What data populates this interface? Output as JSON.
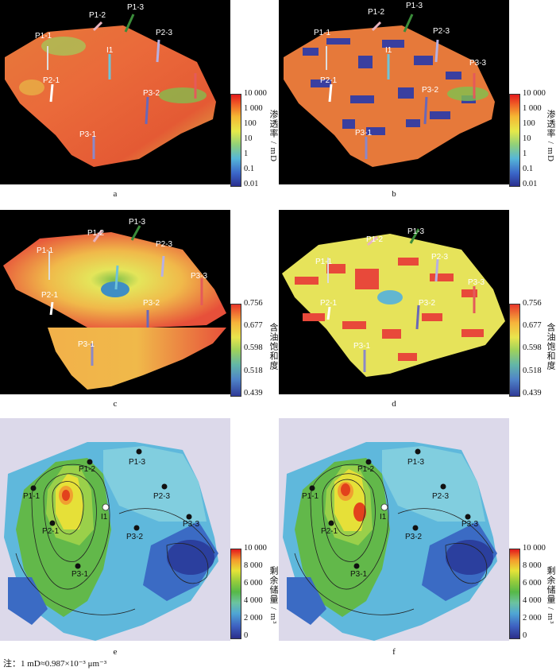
{
  "panels": {
    "a": {
      "label": "a",
      "wells": [
        "P1-1",
        "P1-2",
        "P1-3",
        "P2-3",
        "I1",
        "P2-1",
        "P3-2",
        "P3-1"
      ]
    },
    "b": {
      "label": "b",
      "wells": [
        "P1-1",
        "P1-2",
        "P1-3",
        "P2-3",
        "I1",
        "P2-1",
        "P3-3",
        "P3-2",
        "P3-1"
      ]
    },
    "c": {
      "label": "c",
      "wells": [
        "P1-1",
        "P1-2",
        "P1-3",
        "P2-3",
        "P3-3",
        "P2-1",
        "P3-2",
        "P3-1"
      ]
    },
    "d": {
      "label": "d",
      "wells": [
        "P1-1",
        "P1-2",
        "P1-3",
        "P2-3",
        "P3-3",
        "P2-1",
        "P3-2",
        "P3-1"
      ]
    },
    "e": {
      "label": "e",
      "wells": [
        "P1-2",
        "P1-3",
        "P1-1",
        "P2-3",
        "I1",
        "P2-1",
        "P3-2",
        "P3-3",
        "P3-1"
      ]
    },
    "f": {
      "label": "f",
      "wells": [
        "P1-2",
        "P1-3",
        "P1-1",
        "P2-3",
        "I1",
        "P2-1",
        "P3-2",
        "P3-3",
        "P3-1"
      ]
    }
  },
  "colorbars": {
    "permeability": {
      "title": "渗透率 / mD",
      "ticks": [
        "10 000",
        "1 000",
        "100",
        "10",
        "1",
        "0.1",
        "0.01"
      ]
    },
    "saturation": {
      "title": "含油饱和度",
      "ticks": [
        "0.756",
        "0.677",
        "0.598",
        "0.518",
        "0.439"
      ]
    },
    "reserves": {
      "title": "剩余储量 / m³",
      "ticks": [
        "10 000",
        "8 000",
        "6 000",
        "4 000",
        "2 000",
        "0"
      ]
    }
  },
  "note": "注：1 mD≈0.987×10⁻³ μm⁻³"
}
